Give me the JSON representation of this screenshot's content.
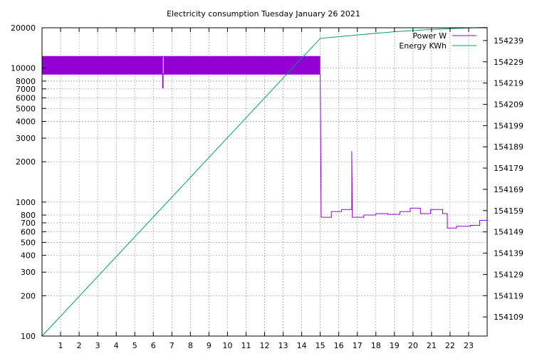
{
  "chart_data": {
    "type": "line",
    "title": "Electricity consumption Tuesday January 26 2021",
    "xlabel": "",
    "ylabel": "",
    "y2label": "",
    "xlim": [
      0,
      24
    ],
    "ylim": [
      100,
      20000
    ],
    "yscale": "log",
    "y2lim": [
      154100,
      154245
    ],
    "x_ticks": [
      1,
      2,
      3,
      4,
      5,
      6,
      7,
      8,
      9,
      10,
      11,
      12,
      13,
      14,
      15,
      16,
      17,
      18,
      19,
      20,
      21,
      22,
      23
    ],
    "y_ticks": [
      100,
      200,
      300,
      400,
      500,
      600,
      700,
      800,
      1000,
      2000,
      3000,
      4000,
      5000,
      6000,
      7000,
      8000,
      10000,
      20000
    ],
    "y2_ticks": [
      154109,
      154119,
      154129,
      154139,
      154149,
      154159,
      154169,
      154179,
      154189,
      154199,
      154209,
      154219,
      154229,
      154239
    ],
    "grid": true,
    "legend": {
      "position": "top-right",
      "entries": [
        "Power W",
        "Energy KWh"
      ]
    },
    "series": [
      {
        "name": "Power W",
        "axis": "y",
        "color": "#9400d3",
        "style": "step-band",
        "band": {
          "x_start": 0,
          "x_end": 15.0,
          "low": 9000,
          "high": 12300
        },
        "x": [
          0,
          6.5,
          6.5,
          6.53,
          6.53,
          15.0,
          15.0,
          15.05,
          15.05,
          15.6,
          15.6,
          16.15,
          16.15,
          16.7,
          16.7,
          16.73,
          16.73,
          17.35,
          17.35,
          18.0,
          18.0,
          18.65,
          18.65,
          19.3,
          19.3,
          19.85,
          19.85,
          20.4,
          20.4,
          20.95,
          20.95,
          21.6,
          21.6,
          21.85,
          21.85,
          22.35,
          22.35,
          23.1,
          23.1,
          23.6,
          23.6,
          24.0
        ],
        "values": [
          9000,
          9000,
          7100,
          7100,
          9000,
          9000,
          9000,
          770,
          770,
          770,
          850,
          850,
          880,
          880,
          2400,
          770,
          770,
          770,
          800,
          800,
          820,
          820,
          810,
          810,
          850,
          850,
          900,
          900,
          820,
          820,
          880,
          880,
          820,
          820,
          640,
          640,
          660,
          660,
          670,
          670,
          730,
          730
        ]
      },
      {
        "name": "Energy KWh",
        "axis": "y2",
        "color": "#009e73",
        "x": [
          0,
          15.0,
          16.0,
          17.0,
          18.0,
          19.0,
          20.0,
          21.0,
          22.0,
          23.0,
          24.0
        ],
        "values": [
          154100,
          154240,
          154240.8,
          154241.6,
          154242.4,
          154243.1,
          154243.7,
          154244.2,
          154244.6,
          154244.9,
          154245.2
        ]
      }
    ]
  }
}
